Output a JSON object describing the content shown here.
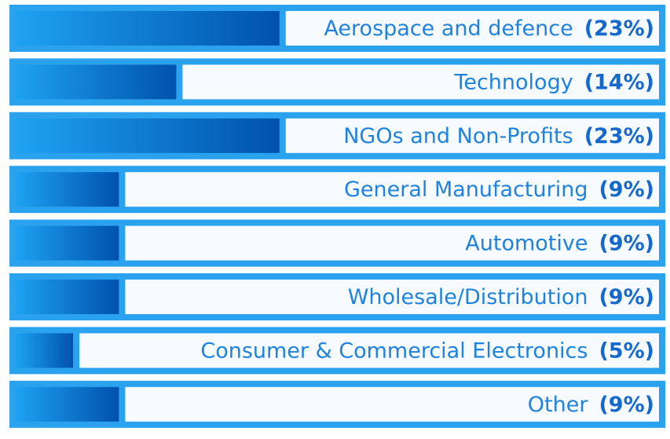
{
  "chart_data": {
    "type": "bar",
    "categories": [
      "Aerospace and defence",
      "Technology",
      "NGOs and Non-Profits",
      "General Manufacturing",
      "Automotive",
      "Wholesale/Distribution",
      "Consumer & Commercial Electronics",
      "Other"
    ],
    "values": [
      23,
      14,
      23,
      9,
      9,
      9,
      5,
      9
    ],
    "value_labels": [
      "(23%)",
      "(14%)",
      "(23%)",
      "(9%)",
      "(9%)",
      "(9%)",
      "(5%)",
      "(9%)"
    ],
    "color": "#0a5fb8"
  }
}
